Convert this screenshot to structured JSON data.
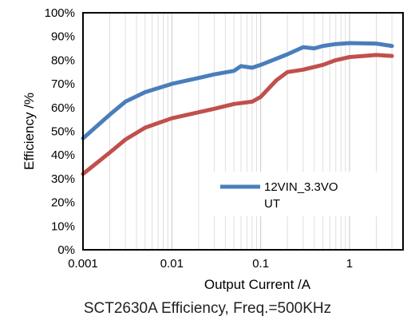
{
  "chart_data": {
    "type": "line",
    "xlabel": "Output Current /A",
    "ylabel": "Efficiency /%",
    "xscale": "log",
    "xlim": [
      0.001,
      4
    ],
    "ylim": [
      0,
      100
    ],
    "x_tick_labels": [
      "0.001",
      "0.01",
      "0.1",
      "1"
    ],
    "y_tick_labels": [
      "0%",
      "10%",
      "20%",
      "30%",
      "40%",
      "50%",
      "60%",
      "70%",
      "80%",
      "90%",
      "100%"
    ],
    "grid": "vertical-minor",
    "legend": {
      "placement": "center-right",
      "entries": [
        "12VIN_3.3VO",
        "UT"
      ]
    },
    "series": [
      {
        "name": "12VIN_3.3VOUT",
        "color": "#4a7ebb",
        "x": [
          0.001,
          0.002,
          0.003,
          0.005,
          0.01,
          0.02,
          0.03,
          0.05,
          0.06,
          0.08,
          0.1,
          0.2,
          0.3,
          0.4,
          0.5,
          0.7,
          1,
          2,
          3
        ],
        "y": [
          47,
          57,
          62.5,
          66.5,
          70,
          72.5,
          74,
          75.5,
          77.5,
          76.8,
          78,
          82.5,
          85.5,
          85,
          86,
          86.8,
          87.2,
          87,
          86
        ]
      },
      {
        "name": "",
        "color": "#c0504d",
        "x": [
          0.001,
          0.002,
          0.003,
          0.005,
          0.01,
          0.02,
          0.03,
          0.05,
          0.08,
          0.1,
          0.15,
          0.2,
          0.3,
          0.5,
          0.7,
          1,
          2,
          3
        ],
        "y": [
          32,
          41,
          46.5,
          51.5,
          55.5,
          58,
          59.5,
          61.5,
          62.5,
          64.5,
          71.5,
          75,
          76,
          78,
          80,
          81.3,
          82.2,
          81.8
        ]
      }
    ]
  },
  "caption": "SCT2630A Efficiency, Freq.=500KHz"
}
